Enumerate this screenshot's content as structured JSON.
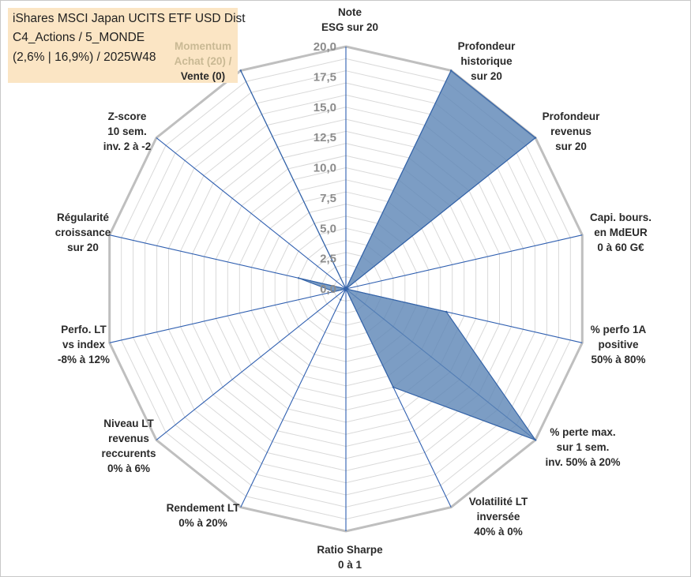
{
  "info_box": {
    "title": "iShares MSCI Japan UCITS ETF USD Dist",
    "category": "C4_Actions / 5_MONDE",
    "stats": "(2,6% | 16,9%) / 2025W48"
  },
  "colors": {
    "fill": "#5b85b5",
    "stroke": "#3564a8",
    "grid_outer": "#bfbfbf",
    "grid_inner": "#d9d9d9",
    "axis": "#2f5fb0",
    "info_bg": "#fbe5c4",
    "momentum_text": "#c9b994"
  },
  "chart_data": {
    "type": "radar",
    "title": "",
    "rlim": [
      0,
      20
    ],
    "ticks": [
      "0,0",
      "2,5",
      "5,0",
      "7,5",
      "10,0",
      "12,5",
      "15,0",
      "17,5",
      "20,0"
    ],
    "axes": [
      {
        "lines": [
          "Note",
          "ESG sur 20"
        ],
        "value": 0
      },
      {
        "lines": [
          "Profondeur",
          "historique",
          "sur 20"
        ],
        "value": 20
      },
      {
        "lines": [
          "Profondeur",
          "revenus",
          "sur 20"
        ],
        "value": 20
      },
      {
        "lines": [
          "Capi. bours.",
          "en MdEUR",
          "0 à 60 G€"
        ],
        "value": 0
      },
      {
        "lines": [
          "% perfo 1A",
          "positive",
          "50% à 80%"
        ],
        "value": 8.5
      },
      {
        "lines": [
          "% perte max.",
          "sur 1 sem.",
          "inv. 50% à 20%"
        ],
        "value": 20
      },
      {
        "lines": [
          "Volatilité LT",
          "inversée",
          "40% à 0%"
        ],
        "value": 9
      },
      {
        "lines": [
          "Ratio Sharpe",
          "0 à 1"
        ],
        "value": 0
      },
      {
        "lines": [
          "Rendement LT",
          "0% à 20%"
        ],
        "value": 1
      },
      {
        "lines": [
          "Niveau LT",
          "revenus",
          "reccurents",
          "0% à 6%"
        ],
        "value": 0
      },
      {
        "lines": [
          "Perfo. LT",
          "vs index",
          "-8% à 12%"
        ],
        "value": 1
      },
      {
        "lines": [
          "Régularité",
          "croissance",
          "sur 20"
        ],
        "value": 4
      },
      {
        "lines": [
          "Z-score",
          "10 sem.",
          "inv. 2 à -2"
        ],
        "value": 0
      },
      {
        "lines": [
          "Momentum",
          "Achat (20) /",
          "Vente (0)"
        ],
        "value": 20
      }
    ]
  }
}
